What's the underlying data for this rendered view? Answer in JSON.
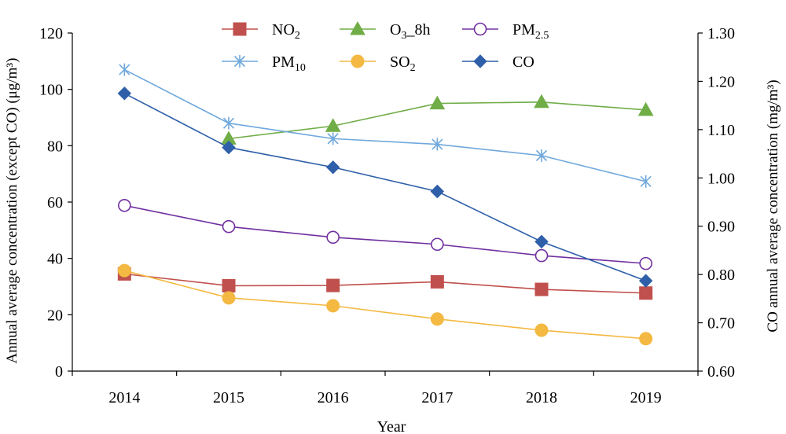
{
  "chart_data": {
    "type": "line",
    "xlabel": "Year",
    "ylabel_left": "Annual average concentration (except CO) (μg/m³)",
    "ylabel_right": "CO annual average concentration (mg/m³)",
    "x": [
      "2014",
      "2015",
      "2016",
      "2017",
      "2018",
      "2019"
    ],
    "y_left": {
      "min": 0,
      "max": 120,
      "ticks": [
        "0",
        "20",
        "40",
        "60",
        "80",
        "100",
        "120"
      ]
    },
    "y_right": {
      "min": 0.6,
      "max": 1.3,
      "ticks": [
        "0.60",
        "0.70",
        "0.80",
        "0.90",
        "1.00",
        "1.10",
        "1.20",
        "1.30"
      ]
    },
    "legend_position": "top",
    "series": [
      {
        "name": "NO",
        "sub": "2",
        "axis": "left",
        "marker": "square",
        "color": "#c0504d",
        "values": [
          34.5,
          30.3,
          30.4,
          31.7,
          29.0,
          27.7
        ]
      },
      {
        "name": "O",
        "sub": "3",
        "suffix": "_8h",
        "axis": "left",
        "marker": "triangle",
        "color": "#70ad47",
        "values": [
          null,
          82.5,
          87.0,
          95.0,
          95.5,
          92.7
        ]
      },
      {
        "name": "PM",
        "sub": "2.5",
        "axis": "left",
        "marker": "circle-open",
        "color": "#7030a0",
        "values": [
          58.8,
          51.3,
          47.5,
          45.0,
          41.0,
          38.2
        ]
      },
      {
        "name": "PM",
        "sub": "10",
        "axis": "left",
        "marker": "star",
        "color": "#6fa8dc",
        "values": [
          107.0,
          88.0,
          82.5,
          80.5,
          76.5,
          67.3
        ]
      },
      {
        "name": "SO",
        "sub": "2",
        "axis": "left",
        "marker": "circle",
        "color": "#f4b942",
        "values": [
          35.7,
          26.0,
          23.2,
          18.5,
          14.5,
          11.5
        ]
      },
      {
        "name": "CO",
        "sub": "",
        "axis": "right",
        "marker": "diamond",
        "color": "#2e5fa8",
        "values": [
          1.175,
          1.063,
          1.022,
          0.972,
          0.868,
          0.787
        ]
      }
    ]
  }
}
